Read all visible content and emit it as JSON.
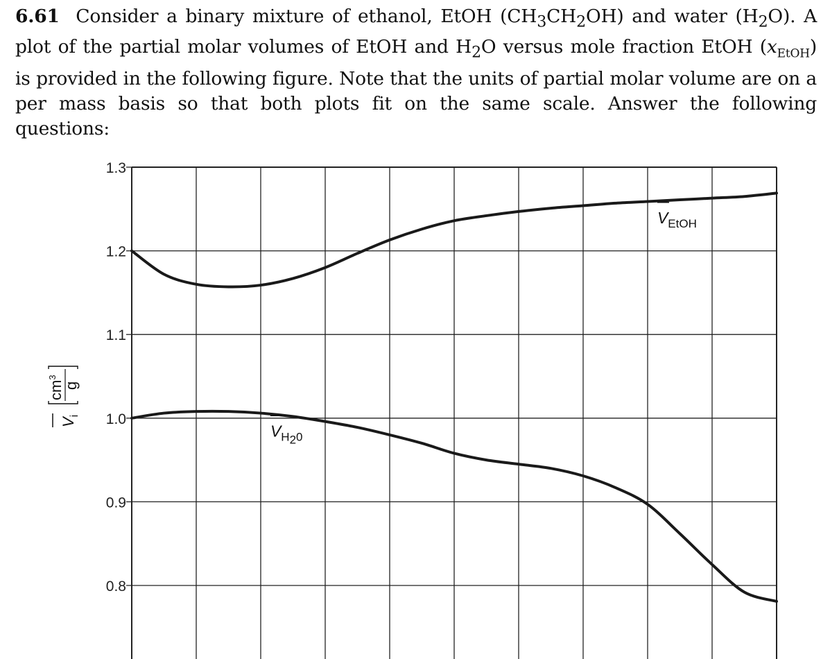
{
  "problem": {
    "number": "6.61",
    "text_1": "Consider a binary mixture of ethanol, EtOH (CH",
    "sub_3": "3",
    "text_2": "CH",
    "sub_2a": "2",
    "text_3": "OH) and water (H",
    "sub_2b": "2",
    "text_4": "O). A plot of the partial molar volumes of EtOH and H",
    "sub_2c": "2",
    "text_5": "O versus mole fraction EtOH (",
    "var_x": "x",
    "var_sub": "EtOH",
    "text_6": ") is provided in the following figure. Note that the units of partial molar volume are on a per mass basis so that both plots fit on the same scale. Answer the following questions:"
  },
  "chart_data": {
    "type": "line",
    "ylabel": {
      "symbol": "V",
      "subscript": "i",
      "unit_num": "cm",
      "unit_exp": "3",
      "unit_den": "g"
    },
    "y_ticks": [
      "1.3",
      "1.2",
      "1.1",
      "1.0",
      "0.9",
      "0.8"
    ],
    "y_tick_values": [
      1.3,
      1.2,
      1.1,
      1.0,
      0.9,
      0.8
    ],
    "ylim": [
      0.7,
      1.3
    ],
    "xlim": [
      0,
      1
    ],
    "x_gridlines": 10,
    "grid": true,
    "series": [
      {
        "name": "V_EtOH",
        "label_main": "V",
        "label_sub": "EtOH",
        "x": [
          0.0,
          0.05,
          0.1,
          0.15,
          0.2,
          0.25,
          0.3,
          0.35,
          0.4,
          0.45,
          0.5,
          0.55,
          0.6,
          0.65,
          0.7,
          0.75,
          0.8,
          0.85,
          0.9,
          0.95,
          1.0
        ],
        "y": [
          1.2,
          1.172,
          1.16,
          1.157,
          1.159,
          1.167,
          1.18,
          1.197,
          1.213,
          1.226,
          1.236,
          1.242,
          1.247,
          1.251,
          1.254,
          1.257,
          1.259,
          1.261,
          1.263,
          1.265,
          1.269
        ]
      },
      {
        "name": "V_H2O",
        "label_main": "V",
        "label_sub": "H",
        "label_sub_tail": "2",
        "label_sub_end": "0",
        "x": [
          0.0,
          0.05,
          0.1,
          0.15,
          0.2,
          0.25,
          0.3,
          0.35,
          0.4,
          0.45,
          0.5,
          0.55,
          0.6,
          0.65,
          0.7,
          0.75,
          0.8,
          0.85,
          0.9,
          0.95,
          1.0
        ],
        "y": [
          1.0,
          1.006,
          1.008,
          1.008,
          1.006,
          1.002,
          0.996,
          0.989,
          0.98,
          0.97,
          0.958,
          0.95,
          0.945,
          0.94,
          0.931,
          0.917,
          0.897,
          0.862,
          0.825,
          0.792,
          0.781
        ]
      }
    ]
  }
}
